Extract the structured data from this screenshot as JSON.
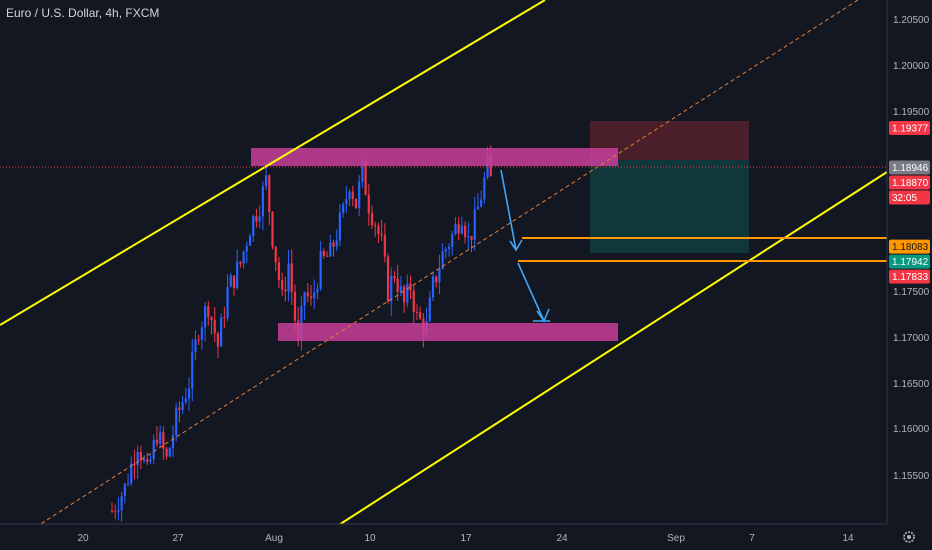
{
  "chart_data": {
    "type": "candlestick",
    "title": "Euro / U.S. Dollar, 4h, FXCM",
    "x_tick_labels": [
      "20",
      "27",
      "Aug",
      "10",
      "17",
      "24",
      "Sep",
      "7",
      "14"
    ],
    "y_tick_labels": [
      "1.20500",
      "1.20000",
      "1.19500",
      "1.17500",
      "1.17000",
      "1.16500",
      "1.16000",
      "1.15500"
    ],
    "ylim": [
      1.15,
      1.2075
    ],
    "grid": false,
    "price_tags": [
      {
        "label": "1.19377",
        "value": 1.19377,
        "color": "#f23645",
        "text_color": "#ffffff"
      },
      {
        "label": "1.18946",
        "value": 1.18946,
        "color": "#787b86",
        "text_color": "#ffffff"
      },
      {
        "label": "1.18870",
        "value": 1.1887,
        "color": "#f23645",
        "text_color": "#ffffff"
      },
      {
        "label": "32:05",
        "value": 1.1865,
        "color": "#f23645",
        "text_color": "#ffffff"
      },
      {
        "label": "1.18083",
        "value": 1.18083,
        "color": "#ff9800",
        "text_color": "#131722"
      },
      {
        "label": "1.17942",
        "value": 1.17942,
        "color": "#089981",
        "text_color": "#ffffff"
      },
      {
        "label": "1.17833",
        "value": 1.17833,
        "color": "#f23645",
        "text_color": "#ffffff"
      }
    ],
    "colors": {
      "up": "#2962ff",
      "down": "#f23645",
      "channel": "#ffff00",
      "zone": "#ca3e9a",
      "arrow": "#42a5f5",
      "level": "#ff9800",
      "midline": "#e67e32"
    },
    "candle_path": [
      [
        0,
        1.152
      ],
      [
        4,
        1.1545
      ],
      [
        8,
        1.1595
      ],
      [
        11,
        1.156
      ],
      [
        14,
        1.1605
      ],
      [
        17,
        1.1575
      ],
      [
        20,
        1.162
      ],
      [
        24,
        1.166
      ],
      [
        27,
        1.172
      ],
      [
        30,
        1.1745
      ],
      [
        33,
        1.17
      ],
      [
        36,
        1.176
      ],
      [
        40,
        1.179
      ],
      [
        43,
        1.183
      ],
      [
        46,
        1.1855
      ],
      [
        48,
        1.188
      ],
      [
        50,
        1.182
      ],
      [
        53,
        1.175
      ],
      [
        55,
        1.179
      ],
      [
        58,
        1.17
      ],
      [
        60,
        1.176
      ],
      [
        62,
        1.1745
      ],
      [
        65,
        1.179
      ],
      [
        68,
        1.18
      ],
      [
        72,
        1.1845
      ],
      [
        74,
        1.188
      ],
      [
        76,
        1.1855
      ],
      [
        78,
        1.189
      ],
      [
        80,
        1.1855
      ],
      [
        82,
        1.1835
      ],
      [
        84,
        1.181
      ],
      [
        86,
        1.176
      ],
      [
        88,
        1.178
      ],
      [
        91,
        1.1745
      ],
      [
        93,
        1.1765
      ],
      [
        95,
        1.173
      ],
      [
        98,
        1.172
      ],
      [
        100,
        1.1765
      ],
      [
        103,
        1.18
      ],
      [
        106,
        1.182
      ],
      [
        109,
        1.1845
      ],
      [
        111,
        1.1815
      ],
      [
        113,
        1.1835
      ],
      [
        115,
        1.1865
      ],
      [
        117,
        1.1895
      ],
      [
        118,
        1.188
      ]
    ]
  }
}
